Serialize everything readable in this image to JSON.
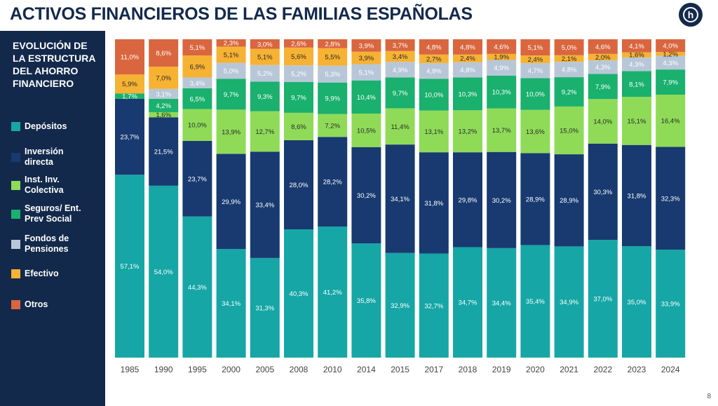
{
  "header": {
    "title": "ACTIVOS FINANCIEROS DE LAS FAMILIAS ESPAÑOLAS",
    "logo_letter": "h"
  },
  "sidebar": {
    "title": "EVOLUCIÓN DE LA ESTRUCTURA DEL AHORRO FINANCIERO",
    "legend": [
      {
        "label": "Depósitos",
        "color": "#16a6a6"
      },
      {
        "label": "Inversión directa",
        "color": "#183a70"
      },
      {
        "label": "Inst. Inv. Colectiva",
        "color": "#8fdb58"
      },
      {
        "label": "Seguros/ Ent. Prev Social",
        "color": "#1ab06e"
      },
      {
        "label": "Fondos de Pensiones",
        "color": "#b8c7d8"
      },
      {
        "label": "Efectivo",
        "color": "#f6b233"
      },
      {
        "label": "Otros",
        "color": "#d9663e"
      }
    ]
  },
  "page_number": "8",
  "chart_data": {
    "type": "bar",
    "stacked": true,
    "percent_stacked": true,
    "categories": [
      "1985",
      "1990",
      "1995",
      "2000",
      "2005",
      "2008",
      "2010",
      "2014",
      "2015",
      "2017",
      "2018",
      "2019",
      "2020",
      "2021",
      "2022",
      "2023",
      "2024"
    ],
    "series": [
      {
        "name": "Depósitos",
        "color": "#16a6a6",
        "values": [
          57.1,
          54.0,
          44.3,
          34.1,
          31.3,
          40.3,
          41.2,
          35.8,
          32.9,
          32.7,
          34.7,
          34.4,
          35.4,
          34.9,
          37.0,
          35.0,
          33.9
        ]
      },
      {
        "name": "Inversión directa",
        "color": "#183a70",
        "values": [
          23.7,
          21.5,
          23.7,
          29.9,
          33.4,
          28.0,
          28.2,
          30.2,
          34.1,
          31.8,
          29.8,
          30.2,
          28.9,
          28.9,
          30.3,
          31.8,
          32.3
        ]
      },
      {
        "name": "Inst. Inv. Colectiva",
        "color": "#8fdb58",
        "values": [
          null,
          1.6,
          10.0,
          13.9,
          12.7,
          8.6,
          7.2,
          10.5,
          11.4,
          13.1,
          13.2,
          13.7,
          13.6,
          15.0,
          14.0,
          15.1,
          16.4
        ]
      },
      {
        "name": "Seguros/ Ent. Prev Social",
        "color": "#1ab06e",
        "values": [
          1.7,
          4.2,
          6.5,
          9.7,
          9.3,
          9.7,
          9.9,
          10.4,
          9.7,
          10.0,
          10.3,
          10.3,
          10.0,
          9.2,
          7.9,
          8.1,
          7.9
        ]
      },
      {
        "name": "Fondos de Pensiones",
        "color": "#b8c7d8",
        "values": [
          null,
          3.1,
          3.4,
          5.0,
          5.2,
          5.2,
          5.3,
          5.1,
          4.9,
          4.9,
          4.8,
          4.9,
          4.7,
          4.8,
          4.3,
          4.3,
          4.3
        ]
      },
      {
        "name": "Efectivo",
        "color": "#f6b233",
        "values": [
          5.9,
          7.0,
          6.9,
          5.1,
          5.1,
          5.6,
          5.5,
          3.9,
          3.4,
          2.7,
          2.4,
          1.9,
          2.4,
          2.1,
          2.0,
          1.6,
          1.2
        ]
      },
      {
        "name": "Otros",
        "color": "#d9663e",
        "values": [
          11.0,
          8.6,
          5.1,
          2.3,
          3.0,
          2.6,
          2.8,
          3.9,
          3.7,
          4.8,
          4.8,
          4.6,
          5.1,
          5.0,
          4.6,
          4.1,
          4.0
        ]
      }
    ],
    "labels": [
      [
        "57,1%",
        "54,0%",
        "44,3%",
        "34,1%",
        "31,3%",
        "40,3%",
        "41,2%",
        "35,8%",
        "32,9%",
        "32,7%",
        "34,7%",
        "34,4%",
        "35,4%",
        "34,9%",
        "37,0%",
        "35,0%",
        "33,9%"
      ],
      [
        "23,7%",
        "21,5%",
        "23,7%",
        "29,9%",
        "33,4%",
        "28,0%",
        "28,2%",
        "30,2%",
        "34,1%",
        "31,8%",
        "29,8%",
        "30,2%",
        "28,9%",
        "28,9%",
        "30,3%",
        "31,8%",
        "32,3%"
      ],
      [
        "",
        "1,6%",
        "10,0%",
        "13,9%",
        "12,7%",
        "8,6%",
        "7,2%",
        "10,5%",
        "11,4%",
        "13,1%",
        "13,2%",
        "13,7%",
        "13,6%",
        "15,0%",
        "14,0%",
        "15,1%",
        "16,4%"
      ],
      [
        "1,7%",
        "4,2%",
        "6,5%",
        "9,7%",
        "9,3%",
        "9,7%",
        "9,9%",
        "10,4%",
        "9,7%",
        "10,0%",
        "10,3%",
        "10,3%",
        "10,0%",
        "9,2%",
        "7,9%",
        "8,1%",
        "7,9%"
      ],
      [
        "",
        "3,1%",
        "3,4%",
        "5,0%",
        "5,2%",
        "5,2%",
        "5,3%",
        "5,1%",
        "4,9%",
        "4,9%",
        "4,8%",
        "4,9%",
        "4,7%",
        "4,8%",
        "4,3%",
        "4,3%",
        "4,3%"
      ],
      [
        "5,9%",
        "7,0%",
        "6,9%",
        "5,1%",
        "5,1%",
        "5,6%",
        "5,5%",
        "3,9%",
        "3,4%",
        "2,7%",
        "2,4%",
        "1,9%",
        "2,4%",
        "2,1%",
        "2,0%",
        "1,6%",
        "1,2%"
      ],
      [
        "11,0%",
        "8,6%",
        "5,1%",
        "2,3%",
        "3,0%",
        "2,6%",
        "2,8%",
        "3,9%",
        "3,7%",
        "4,8%",
        "4,8%",
        "4,6%",
        "5,1%",
        "5,0%",
        "4,6%",
        "4,1%",
        "4,0%"
      ]
    ],
    "label_colors": [
      "#ffffff",
      "#ffffff",
      "#2a2a2a",
      "#ffffff",
      "#ffffff",
      "#2a2a2a",
      "#ffffff"
    ],
    "title": "",
    "xlabel": "",
    "ylabel": "",
    "grid": false,
    "legend": "left"
  }
}
